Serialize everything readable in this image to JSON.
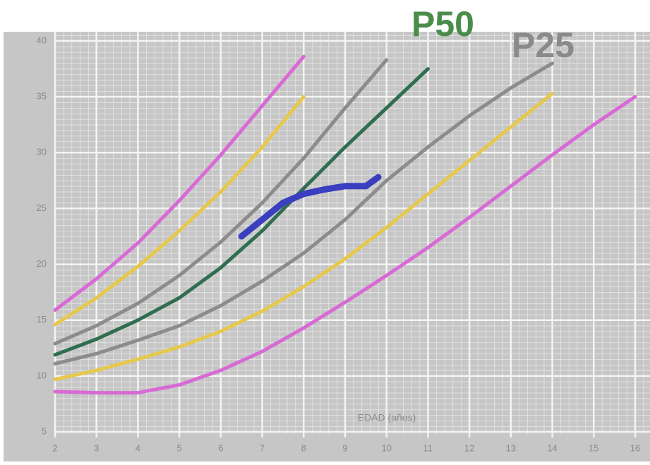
{
  "chart_data": {
    "type": "line",
    "x_label": "EDAD (años)",
    "x": [
      2,
      3,
      4,
      5,
      6,
      7,
      8,
      9,
      10,
      11,
      12,
      13,
      14,
      15,
      16
    ],
    "xlim": [
      2,
      16
    ],
    "xticks": [
      2,
      3,
      4,
      5,
      6,
      7,
      8,
      9,
      10,
      11,
      12,
      13,
      14,
      15,
      16
    ],
    "ylim": [
      5,
      40
    ],
    "yticks": [
      5,
      10,
      15,
      20,
      25,
      30,
      35,
      40
    ],
    "grid": true,
    "series": [
      {
        "color": "#d86ad6",
        "values": [
          15.9,
          18.7,
          21.9,
          25.7,
          29.8,
          34.2,
          38.6,
          null,
          null,
          null,
          null,
          null,
          null,
          null,
          null
        ]
      },
      {
        "color": "#e6c84c",
        "values": [
          14.6,
          17,
          19.8,
          23,
          26.5,
          30.5,
          35,
          null,
          null,
          null,
          null,
          null,
          null,
          null,
          null
        ]
      },
      {
        "color": "#8c8c8c",
        "values": [
          12.9,
          14.5,
          16.5,
          19,
          22,
          25.5,
          29.5,
          34,
          38.3,
          null,
          null,
          null,
          null,
          null,
          null
        ]
      },
      {
        "name": "P50",
        "color": "#2f6e50",
        "values": [
          11.9,
          13.3,
          15,
          17,
          19.7,
          23,
          26.8,
          30.5,
          34,
          37.5,
          null,
          null,
          null,
          null,
          null
        ]
      },
      {
        "name": "P25",
        "color": "#8c8c8c",
        "values": [
          11.1,
          12,
          13.2,
          14.5,
          16.3,
          18.5,
          21,
          24,
          27.5,
          30.5,
          33.3,
          35.8,
          38,
          null,
          null
        ]
      },
      {
        "color": "#e6c84c",
        "values": [
          9.7,
          10.5,
          11.5,
          12.6,
          14,
          15.8,
          18,
          20.5,
          23.3,
          26.3,
          29.3,
          32.3,
          35.3,
          null,
          null
        ]
      },
      {
        "color": "#d86ad6",
        "values": [
          8.6,
          8.5,
          8.5,
          9.2,
          10.5,
          12.2,
          14.3,
          16.6,
          19,
          21.5,
          24.2,
          27,
          29.8,
          32.5,
          35
        ]
      },
      {
        "color": "#3a3fc0",
        "x": [
          6.5,
          7,
          7.5,
          8,
          8.5,
          9,
          9.5,
          9.8
        ],
        "values": [
          22.5,
          24,
          25.5,
          26.3,
          26.7,
          27,
          27,
          27.8
        ]
      }
    ]
  }
}
